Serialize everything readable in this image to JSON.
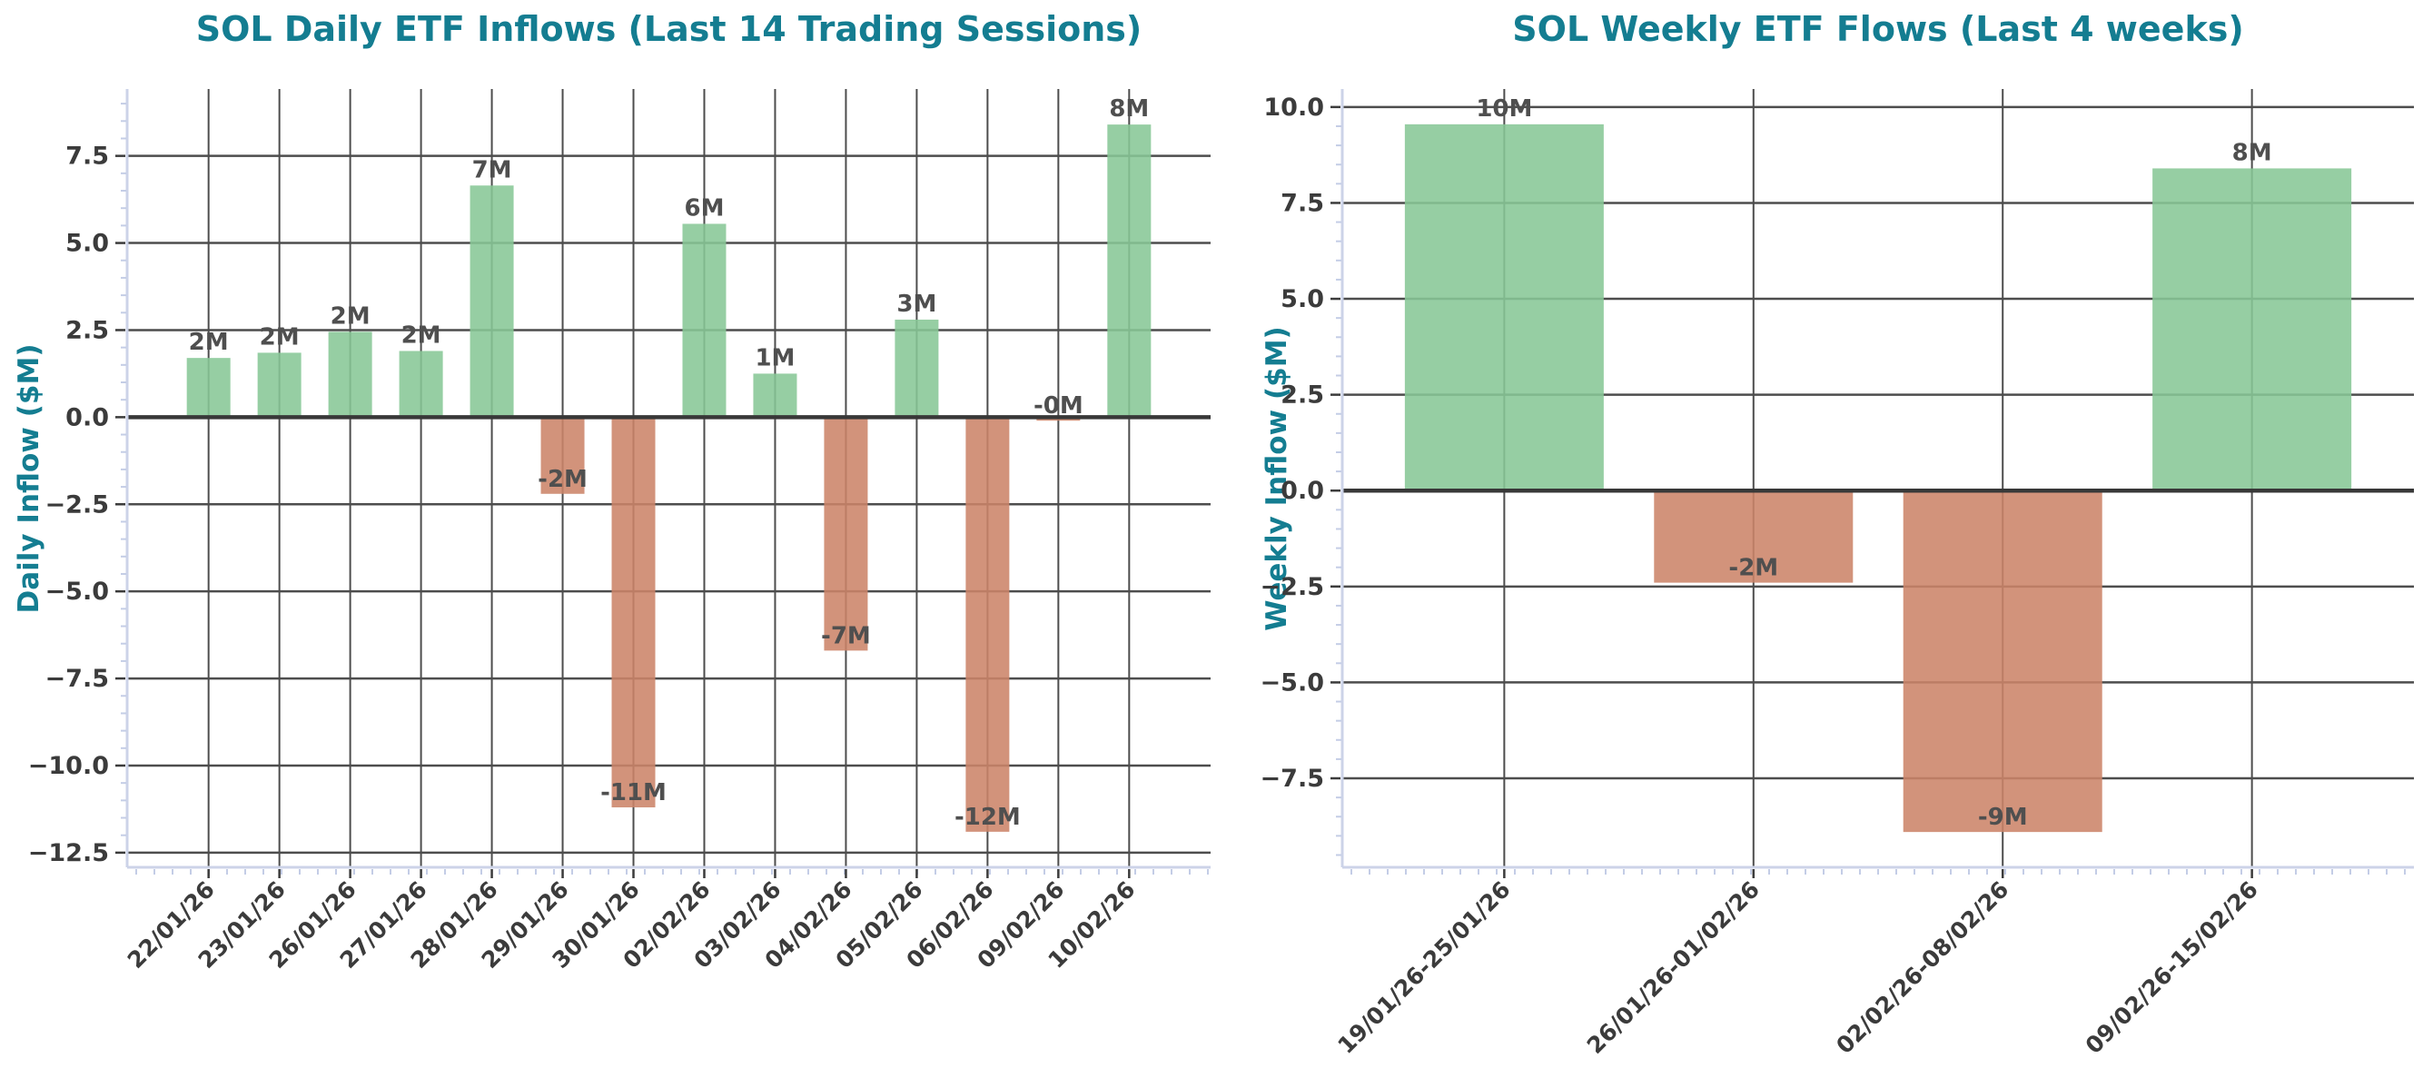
{
  "colors": {
    "accent_teal": "#147d91",
    "bar_positive": "#87c796",
    "bar_negative": "#cc8469",
    "grid_line": "#4d4d4d",
    "zero_line": "#383838",
    "tick_label": "#3b3b3b",
    "value_label": "#4f4f4f",
    "spine": "#ccd3e8",
    "minor_tick": "#c4cde6"
  },
  "chart_data": [
    {
      "type": "bar",
      "title": "SOL Daily ETF Inflows (Last 14 Trading Sessions)",
      "xlabel": "",
      "ylabel": "Daily Inflow ($M)",
      "categories": [
        "22/01/26",
        "23/01/26",
        "26/01/26",
        "27/01/26",
        "28/01/26",
        "29/01/26",
        "30/01/26",
        "02/02/26",
        "03/02/26",
        "04/02/26",
        "05/02/26",
        "06/02/26",
        "09/02/26",
        "10/02/26"
      ],
      "values": [
        1.7,
        1.85,
        2.45,
        1.9,
        6.65,
        -2.2,
        -11.2,
        5.55,
        1.25,
        -6.7,
        2.8,
        -11.9,
        -0.1,
        8.4
      ],
      "bar_labels": [
        "2M",
        "2M",
        "2M",
        "2M",
        "7M",
        "-2M",
        "-11M",
        "6M",
        "1M",
        "-7M",
        "3M",
        "-12M",
        "-0M",
        "8M"
      ],
      "yticks": [
        7.5,
        5.0,
        2.5,
        0.0,
        -2.5,
        -5.0,
        -7.5,
        -10.0,
        -12.5
      ],
      "ylim": [
        -12.92,
        9.42
      ],
      "grid": true,
      "legend": null
    },
    {
      "type": "bar",
      "title": "SOL Weekly ETF Flows (Last 4 weeks)",
      "xlabel": "",
      "ylabel": "Weekly Inflow ($M)",
      "categories": [
        "19/01/26-25/01/26",
        "26/01/26-01/02/26",
        "02/02/26-08/02/26",
        "09/02/26-15/02/26"
      ],
      "values": [
        9.55,
        -2.4,
        -8.9,
        8.4
      ],
      "bar_labels": [
        "10M",
        "-2M",
        "-9M",
        "8M"
      ],
      "yticks": [
        10.0,
        7.5,
        5.0,
        2.5,
        0.0,
        -2.5,
        -5.0,
        -7.5
      ],
      "ylim": [
        -9.82,
        10.47
      ],
      "grid": true,
      "legend": null
    }
  ]
}
